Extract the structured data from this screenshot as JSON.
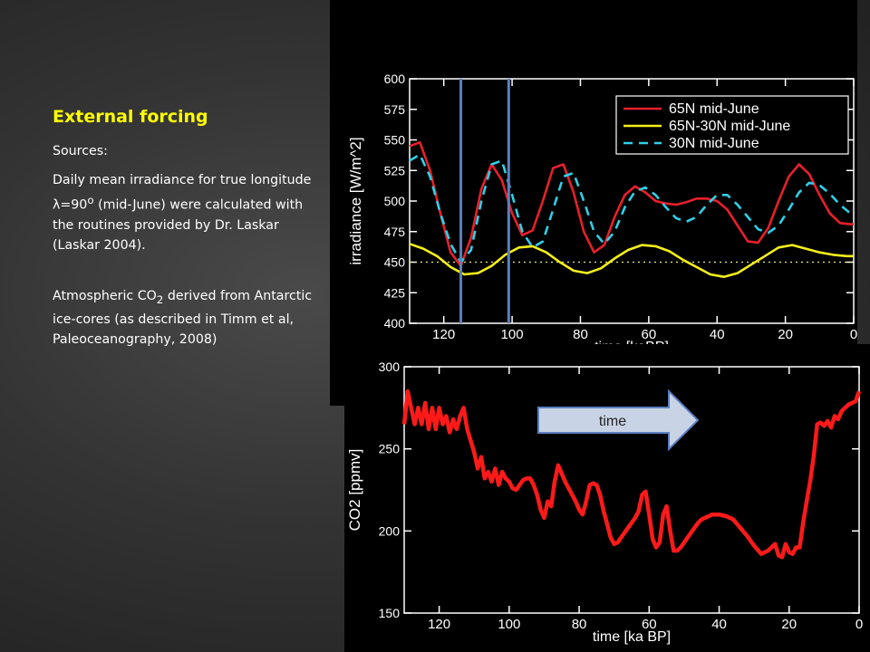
{
  "slide": {
    "title": "External forcing",
    "sources_label": "Sources:",
    "para1_pre": "Daily mean irradiance for true longitude λ=90",
    "para1_sup": "o",
    "para1_post": " (mid-June) were calculated with the routines provided by Dr. Laskar (Laskar 2004).",
    "para2_pre": "Atmospheric CO",
    "para2_sub": "2",
    "para2_post": " derived from Antarctic ice-cores (as described in Timm et al, Paleoceanography, 2008)"
  },
  "arrow": {
    "label": "time"
  },
  "chart_data": [
    {
      "type": "line",
      "ylabel": "irradiance [W/m^2]",
      "xlabel": "time [kaBP]",
      "xlim": [
        130,
        0
      ],
      "ylim": [
        400,
        600
      ],
      "xticks": [
        120,
        100,
        80,
        60,
        40,
        20,
        0
      ],
      "yticks": [
        400,
        425,
        450,
        475,
        500,
        525,
        550,
        575,
        600
      ],
      "legend_position": "top-right",
      "reference_line": 450,
      "vertical_markers": [
        115,
        101
      ],
      "series": [
        {
          "name": "65N mid-June",
          "color": "#e8202a",
          "dash": "none",
          "x": [
            130,
            127,
            124,
            121,
            118,
            115,
            112,
            109,
            106,
            103,
            100,
            97,
            94,
            91,
            88,
            85,
            82,
            79,
            76,
            73,
            70,
            67,
            64,
            61,
            58,
            55,
            52,
            49,
            46,
            43,
            40,
            37,
            34,
            31,
            28,
            25,
            22,
            19,
            16,
            13,
            10,
            7,
            4,
            1,
            0
          ],
          "values": [
            545,
            548,
            525,
            490,
            458,
            447,
            470,
            510,
            530,
            517,
            490,
            472,
            476,
            500,
            527,
            530,
            507,
            475,
            458,
            464,
            487,
            505,
            512,
            507,
            500,
            498,
            497,
            499,
            502,
            502,
            500,
            493,
            480,
            467,
            466,
            478,
            500,
            520,
            530,
            522,
            505,
            490,
            482,
            481,
            481
          ]
        },
        {
          "name": "65N-30N mid-June",
          "color": "#f5ef1a",
          "dash": "none",
          "x": [
            130,
            126,
            122,
            118,
            114,
            110,
            106,
            102,
            98,
            94,
            90,
            86,
            82,
            78,
            74,
            70,
            66,
            62,
            58,
            54,
            50,
            46,
            42,
            38,
            34,
            30,
            26,
            22,
            18,
            14,
            10,
            6,
            2,
            0
          ],
          "values": [
            465,
            461,
            455,
            446,
            440,
            441,
            447,
            456,
            462,
            463,
            458,
            450,
            443,
            441,
            445,
            453,
            460,
            464,
            463,
            459,
            452,
            446,
            440,
            438,
            441,
            448,
            455,
            462,
            464,
            461,
            458,
            456,
            455,
            455
          ]
        },
        {
          "name": "30N mid-June",
          "color": "#30d0e8",
          "dash": "10,7",
          "x": [
            130,
            127,
            124,
            121,
            118,
            115,
            112,
            109,
            106,
            103,
            100,
            97,
            94,
            91,
            88,
            85,
            82,
            79,
            76,
            73,
            70,
            67,
            64,
            61,
            58,
            55,
            52,
            49,
            46,
            43,
            40,
            37,
            34,
            31,
            28,
            25,
            22,
            19,
            16,
            13,
            10,
            7,
            4,
            1,
            0
          ],
          "values": [
            533,
            538,
            520,
            490,
            465,
            450,
            460,
            500,
            530,
            533,
            505,
            475,
            462,
            467,
            493,
            520,
            523,
            500,
            475,
            465,
            475,
            495,
            508,
            511,
            505,
            495,
            486,
            483,
            487,
            497,
            505,
            505,
            497,
            487,
            477,
            474,
            480,
            493,
            507,
            515,
            513,
            506,
            497,
            490,
            488
          ]
        }
      ]
    },
    {
      "type": "line",
      "ylabel": "CO2 [ppmv]",
      "xlabel": "time [ka BP]",
      "xlim": [
        130,
        0
      ],
      "ylim": [
        150,
        300
      ],
      "xticks": [
        120,
        100,
        80,
        60,
        40,
        20,
        0
      ],
      "yticks": [
        150,
        200,
        250,
        300
      ],
      "series": [
        {
          "name": "",
          "color": "#ff1a1a",
          "x": [
            130,
            129,
            128,
            127,
            126,
            125,
            124,
            123,
            122,
            121,
            120,
            119,
            118,
            117,
            116,
            115,
            114,
            113,
            112,
            111,
            110,
            109,
            108,
            107,
            106,
            105,
            104,
            103,
            102,
            101,
            100,
            99,
            98,
            97,
            96,
            95,
            94,
            93,
            92,
            91,
            90,
            89,
            88,
            87,
            86,
            85,
            84,
            83,
            82,
            81,
            80,
            79,
            78,
            77,
            76,
            75,
            74,
            73,
            72,
            71,
            70,
            69,
            68,
            67,
            66,
            65,
            64,
            63,
            62,
            61,
            60,
            59,
            58,
            57,
            56,
            55,
            54,
            53,
            52,
            51,
            50,
            49,
            48,
            47,
            46,
            45,
            44,
            43,
            42,
            41,
            40,
            38,
            36,
            34,
            32,
            30,
            28,
            26,
            24,
            23,
            22,
            21,
            20,
            19,
            18,
            17,
            16,
            15,
            14,
            13,
            12,
            11,
            10,
            9,
            8,
            7,
            6,
            5,
            4,
            3,
            2,
            1,
            0
          ],
          "values": [
            265,
            285,
            275,
            265,
            275,
            265,
            278,
            262,
            275,
            262,
            275,
            265,
            270,
            260,
            268,
            262,
            270,
            275,
            262,
            255,
            248,
            238,
            245,
            232,
            236,
            230,
            238,
            228,
            236,
            232,
            230,
            226,
            225,
            228,
            231,
            232,
            232,
            228,
            222,
            213,
            208,
            218,
            215,
            230,
            240,
            235,
            230,
            226,
            222,
            218,
            213,
            210,
            218,
            228,
            229,
            228,
            222,
            212,
            204,
            196,
            192,
            193,
            196,
            199,
            202,
            205,
            208,
            212,
            222,
            224,
            210,
            195,
            190,
            193,
            210,
            215,
            200,
            188,
            188,
            190,
            193,
            196,
            199,
            202,
            205,
            207,
            208,
            209,
            210,
            210,
            210,
            209,
            207,
            202,
            197,
            191,
            186,
            188,
            192,
            185,
            184,
            192,
            187,
            186,
            190,
            190,
            205,
            218,
            230,
            245,
            265,
            266,
            264,
            267,
            263,
            270,
            268,
            273,
            275,
            277,
            278,
            279,
            285
          ]
        }
      ]
    }
  ]
}
